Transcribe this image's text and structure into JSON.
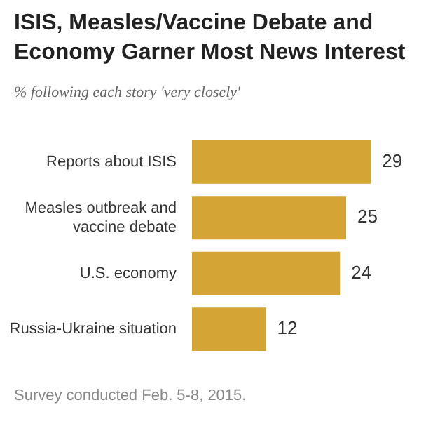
{
  "chart_data": {
    "type": "bar",
    "orientation": "horizontal",
    "title": "ISIS, Measles/Vaccine Debate and Economy Garner Most News Interest",
    "subtitle": "% following each story 'very closely'",
    "categories": [
      "Reports about ISIS",
      "Measles outbreak and vaccine debate",
      "U.S. economy",
      "Russia-Ukraine situation"
    ],
    "values": [
      29,
      25,
      24,
      12
    ],
    "color": "#d4a534",
    "data_labels": true,
    "legend": false,
    "annotations": [
      "Survey conducted Feb. 5-8, 2015."
    ]
  }
}
